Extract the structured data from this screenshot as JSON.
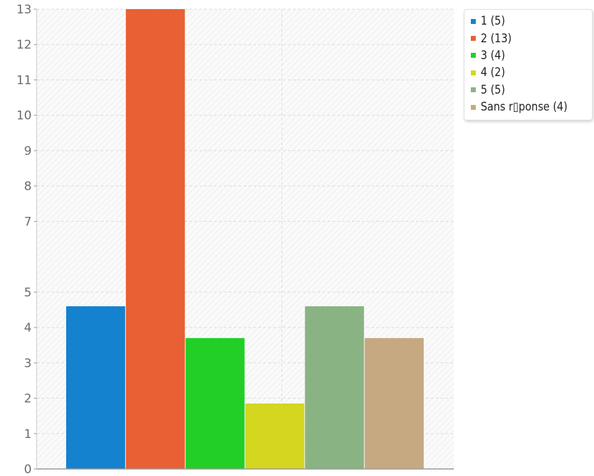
{
  "chart_data": {
    "type": "bar",
    "title": "",
    "xlabel": "",
    "ylabel": "",
    "ylim": [
      0,
      13
    ],
    "yticks": [
      "0",
      "1",
      "2",
      "3",
      "4",
      "5",
      "7",
      "8",
      "9",
      "10",
      "11",
      "12",
      "13"
    ],
    "grid": true,
    "legend_position": "top-right",
    "series": [
      {
        "name": "1 (5)",
        "value": 4.6,
        "color": "#1582cf"
      },
      {
        "name": "2 (13)",
        "value": 13,
        "color": "#e86033"
      },
      {
        "name": "3 (4)",
        "value": 3.7,
        "color": "#21cf27"
      },
      {
        "name": "4 (2)",
        "value": 1.85,
        "color": "#d4d61f"
      },
      {
        "name": "5 (5)",
        "value": 4.6,
        "color": "#8ab383"
      },
      {
        "name": "Sans r▯ponse (4)",
        "value": 3.7,
        "color": "#c6a980"
      }
    ]
  }
}
